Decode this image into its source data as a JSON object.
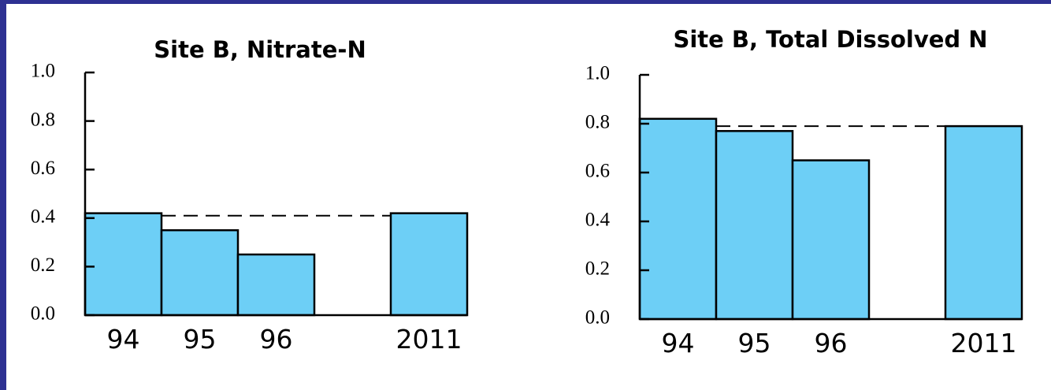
{
  "chart_data": [
    {
      "type": "bar",
      "title": "Site B, Nitrate-N",
      "categories": [
        "94",
        "95",
        "96",
        null,
        "2011"
      ],
      "values": [
        0.42,
        0.35,
        0.25,
        null,
        0.42
      ],
      "reference_line": 0.41,
      "color": "#6dcff6",
      "ylim": [
        0,
        1
      ],
      "yticks": [
        {
          "value": 0,
          "label": "0.0"
        },
        0.2,
        0.4,
        0.6,
        0.8,
        {
          "value": 1,
          "label": "1.0"
        }
      ]
    },
    {
      "type": "bar",
      "title": "Site B, Total Dissolved N",
      "categories": [
        "94",
        "95",
        "96",
        null,
        "2011"
      ],
      "values": [
        0.82,
        0.77,
        0.65,
        null,
        0.79
      ],
      "reference_line": 0.79,
      "color": "#6dcff6",
      "ylim": [
        0,
        1
      ],
      "yticks": [
        {
          "value": 0,
          "label": "0.0"
        },
        0.2,
        0.4,
        0.6,
        0.8,
        {
          "value": 1,
          "label": "1.0"
        }
      ]
    }
  ]
}
